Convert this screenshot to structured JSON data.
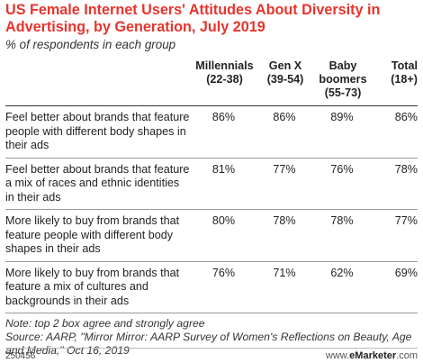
{
  "chart_data": {
    "type": "table",
    "title": "US Female Internet Users' Attitudes About Diversity in Advertising, by Generation, July 2019",
    "subtitle": "% of respondents in each group",
    "columns": [
      {
        "label": "",
        "sub": ""
      },
      {
        "label": "Millennials",
        "sub": "(22-38)"
      },
      {
        "label": "Gen X",
        "sub": "(39-54)"
      },
      {
        "label": "Baby\nboomers",
        "sub": "(55-73)"
      },
      {
        "label": "Total",
        "sub": "(18+)"
      }
    ],
    "rows": [
      {
        "label": "Feel better about brands that feature people with different body shapes in their ads",
        "values": [
          "86%",
          "86%",
          "89%",
          "86%"
        ]
      },
      {
        "label": "Feel better about brands that feature a mix of races and ethnic identities in their ads",
        "values": [
          "81%",
          "77%",
          "76%",
          "78%"
        ]
      },
      {
        "label": "More likely to buy from brands that feature people with different body shapes in their ads",
        "values": [
          "80%",
          "78%",
          "78%",
          "77%"
        ]
      },
      {
        "label": "More likely to buy from brands that feature a mix of cultures and backgrounds in their ads",
        "values": [
          "76%",
          "71%",
          "62%",
          "69%"
        ]
      }
    ]
  },
  "note": "Note: top 2 box agree and strongly agree",
  "source": "Source: AARP, \"Mirror Mirror: AARP Survey of Women's Reflections on Beauty, Age and Media,\" Oct 16, 2019",
  "footer": {
    "code": "250456",
    "brand_prefix": "www.",
    "brand_name": "eMarketer",
    "brand_suffix": ".com"
  },
  "colors": {
    "title": "#e8342c"
  }
}
